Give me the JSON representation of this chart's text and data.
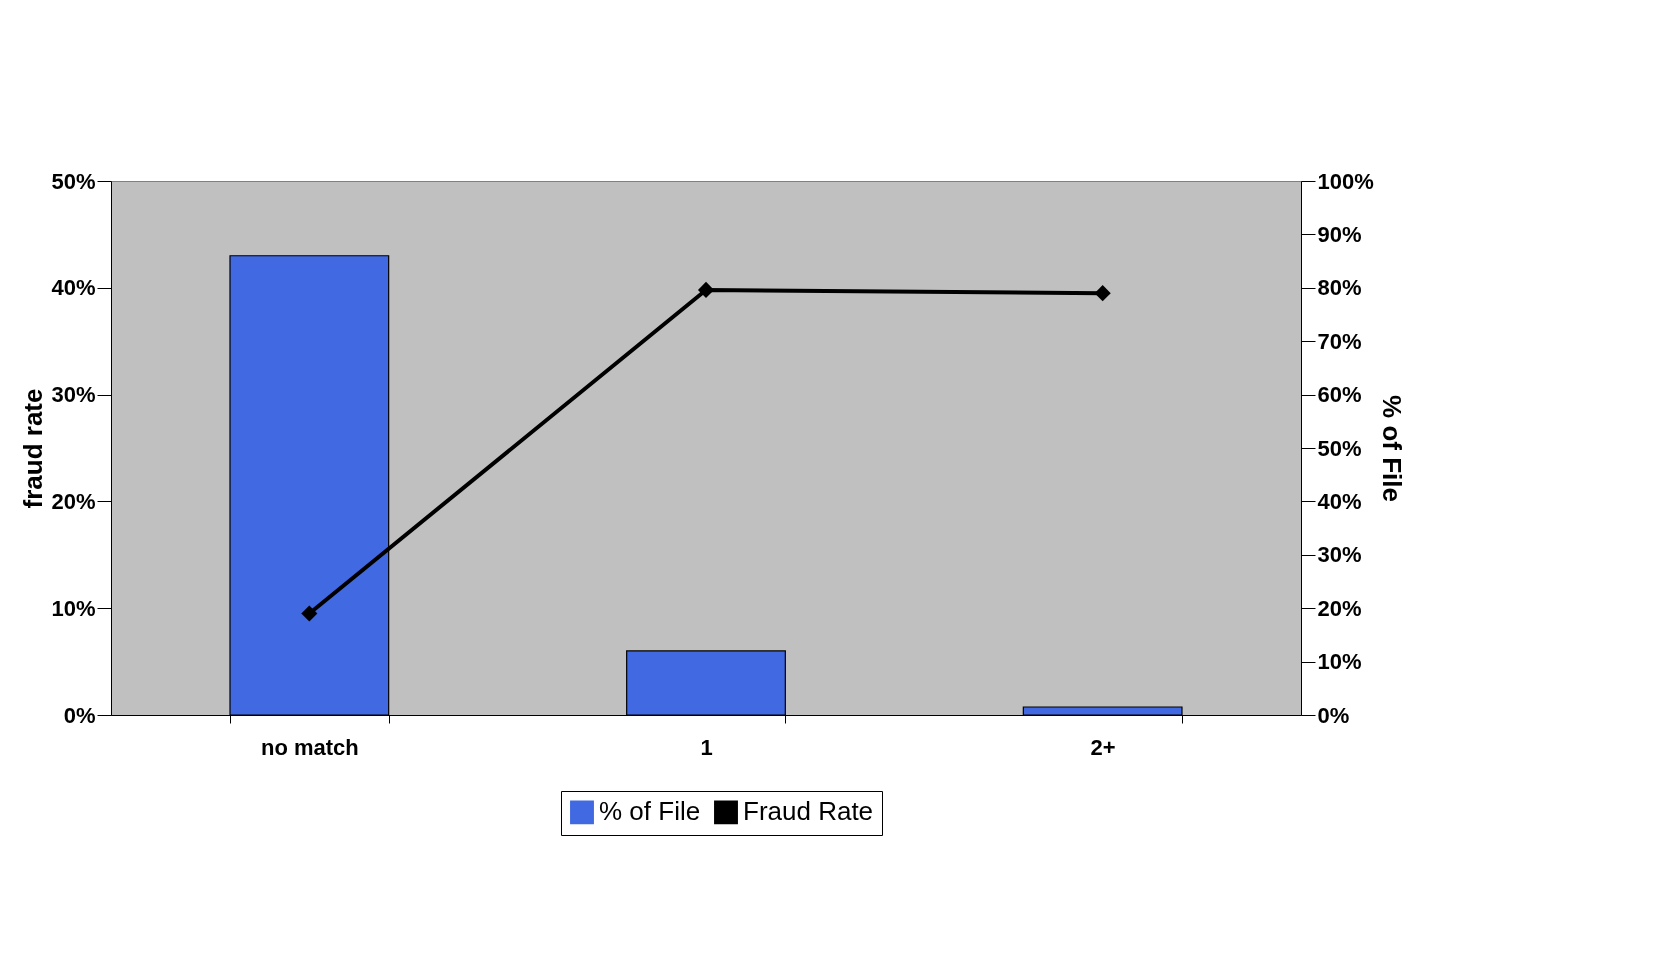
{
  "chart_data": {
    "type": "bar",
    "categories": [
      "no match",
      "1",
      "2+"
    ],
    "series": [
      {
        "name": "% of File",
        "axis": "y2",
        "color": "#4169e1",
        "values": [
          86,
          12,
          1.5
        ]
      },
      {
        "name": "Fraud Rate",
        "type": "line",
        "color": "#000000",
        "marker": "diamond",
        "values": [
          9.5,
          39.8,
          39.5
        ]
      }
    ],
    "ylabel": "fraud rate",
    "y2label": "% of File",
    "ylim": [
      0,
      50
    ],
    "yticks": [
      {
        "value": 0,
        "label": "0%"
      },
      {
        "value": 10,
        "label": "10%"
      },
      {
        "value": 20,
        "label": "20%"
      },
      {
        "value": 30,
        "label": "30%"
      },
      {
        "value": 40,
        "label": "40%"
      },
      {
        "value": 50,
        "label": "50%"
      }
    ],
    "y2lim": [
      0,
      100
    ],
    "y2ticks": [
      {
        "value": 0,
        "label": "0%"
      },
      {
        "value": 10,
        "label": "10%"
      },
      {
        "value": 20,
        "label": "20%"
      },
      {
        "value": 30,
        "label": "30%"
      },
      {
        "value": 40,
        "label": "40%"
      },
      {
        "value": 50,
        "label": "50%"
      },
      {
        "value": 60,
        "label": "60%"
      },
      {
        "value": 70,
        "label": "70%"
      },
      {
        "value": 80,
        "label": "80%"
      },
      {
        "value": 90,
        "label": "90%"
      },
      {
        "value": 100,
        "label": "100%"
      }
    ],
    "grid": false,
    "legend": "bottom"
  }
}
